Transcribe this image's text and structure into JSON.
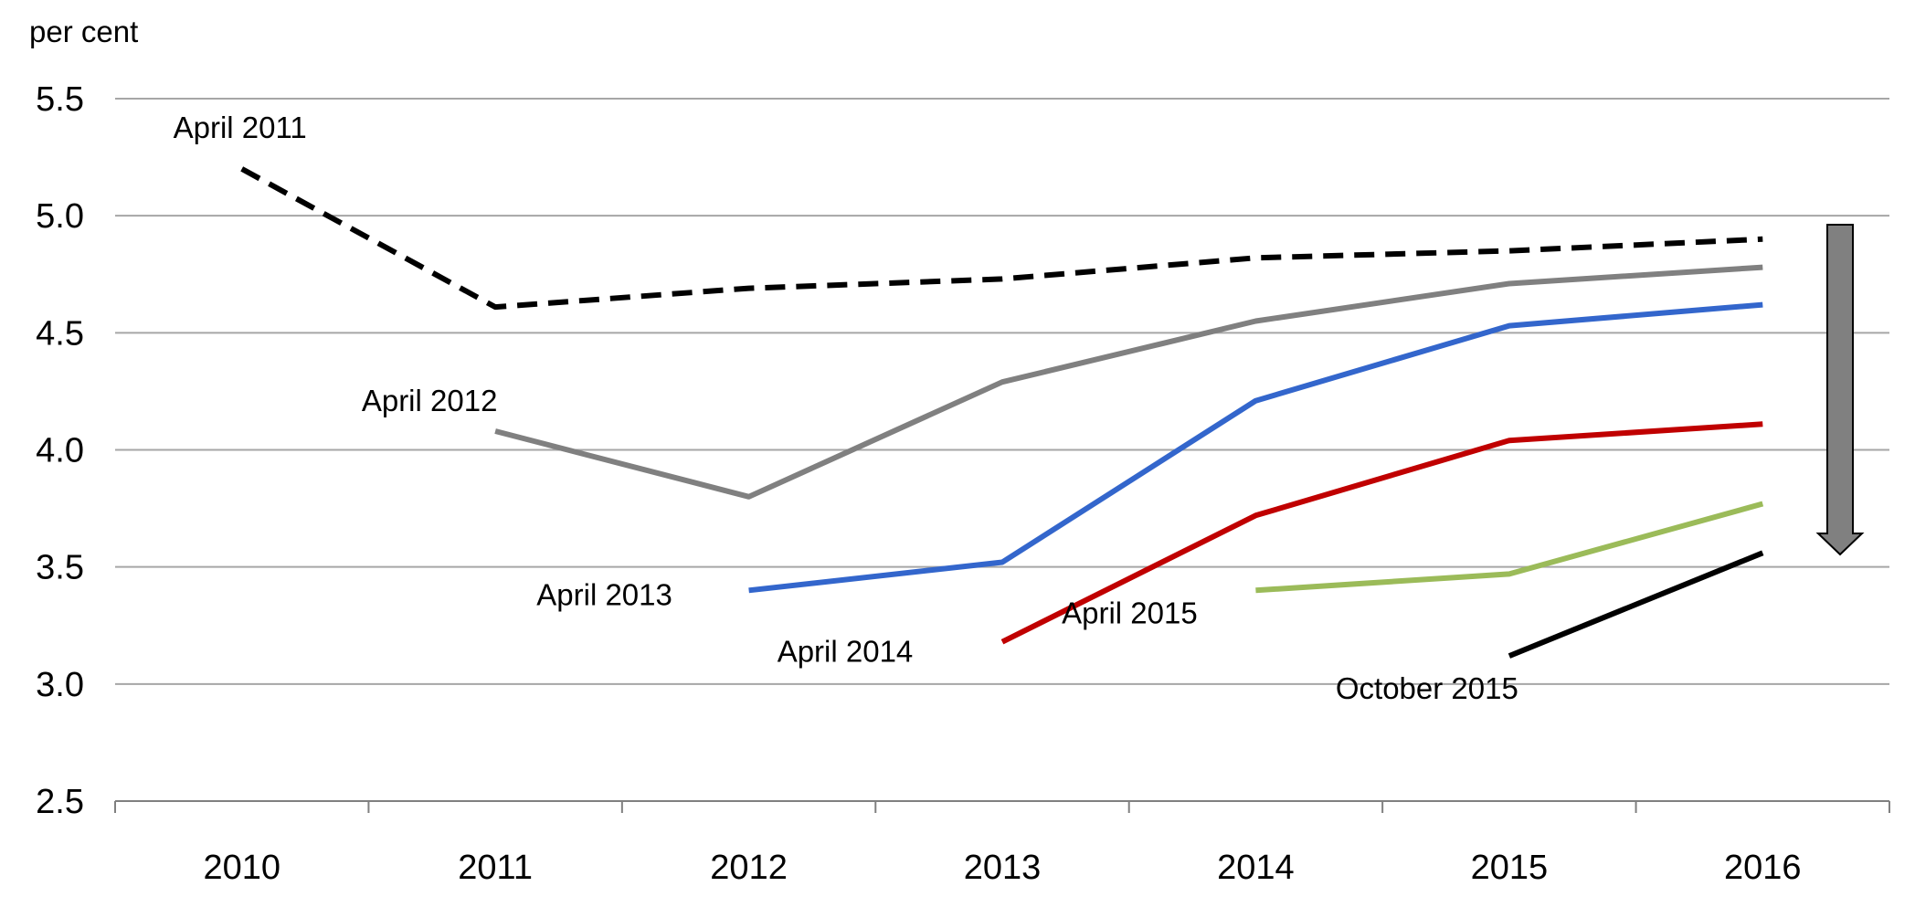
{
  "chart_data": {
    "type": "line",
    "ylabel": "per cent",
    "ylim": [
      2.5,
      5.5
    ],
    "y_ticks": [
      "5.5",
      "5.0",
      "4.5",
      "4.0",
      "3.5",
      "3.0",
      "2.5"
    ],
    "categories": [
      "2010",
      "2011",
      "2012",
      "2013",
      "2014",
      "2015",
      "2016"
    ],
    "grid": "horizontal",
    "legend": "none",
    "series": [
      {
        "name": "April 2011",
        "color": "#000000",
        "dash": true,
        "values": [
          5.2,
          4.61,
          4.69,
          4.73,
          4.82,
          4.85,
          4.9
        ]
      },
      {
        "name": "April 2012",
        "color": "#808080",
        "dash": false,
        "values": [
          null,
          4.08,
          3.8,
          4.29,
          4.55,
          4.71,
          4.78
        ]
      },
      {
        "name": "April 2013",
        "color": "#3366cc",
        "dash": false,
        "values": [
          null,
          null,
          3.4,
          3.52,
          4.21,
          4.53,
          4.62
        ]
      },
      {
        "name": "April 2014",
        "color": "#c00000",
        "dash": false,
        "values": [
          null,
          null,
          null,
          3.18,
          3.72,
          4.04,
          4.11
        ]
      },
      {
        "name": "April 2015",
        "color": "#9bbb59",
        "dash": false,
        "values": [
          null,
          null,
          null,
          null,
          3.4,
          3.47,
          3.77
        ]
      },
      {
        "name": "October 2015",
        "color": "#000000",
        "dash": false,
        "values": [
          null,
          null,
          null,
          null,
          null,
          3.12,
          3.56
        ]
      }
    ],
    "annotation": {
      "type": "down-arrow",
      "color": "#808080",
      "meaning": "downward revisions"
    }
  }
}
